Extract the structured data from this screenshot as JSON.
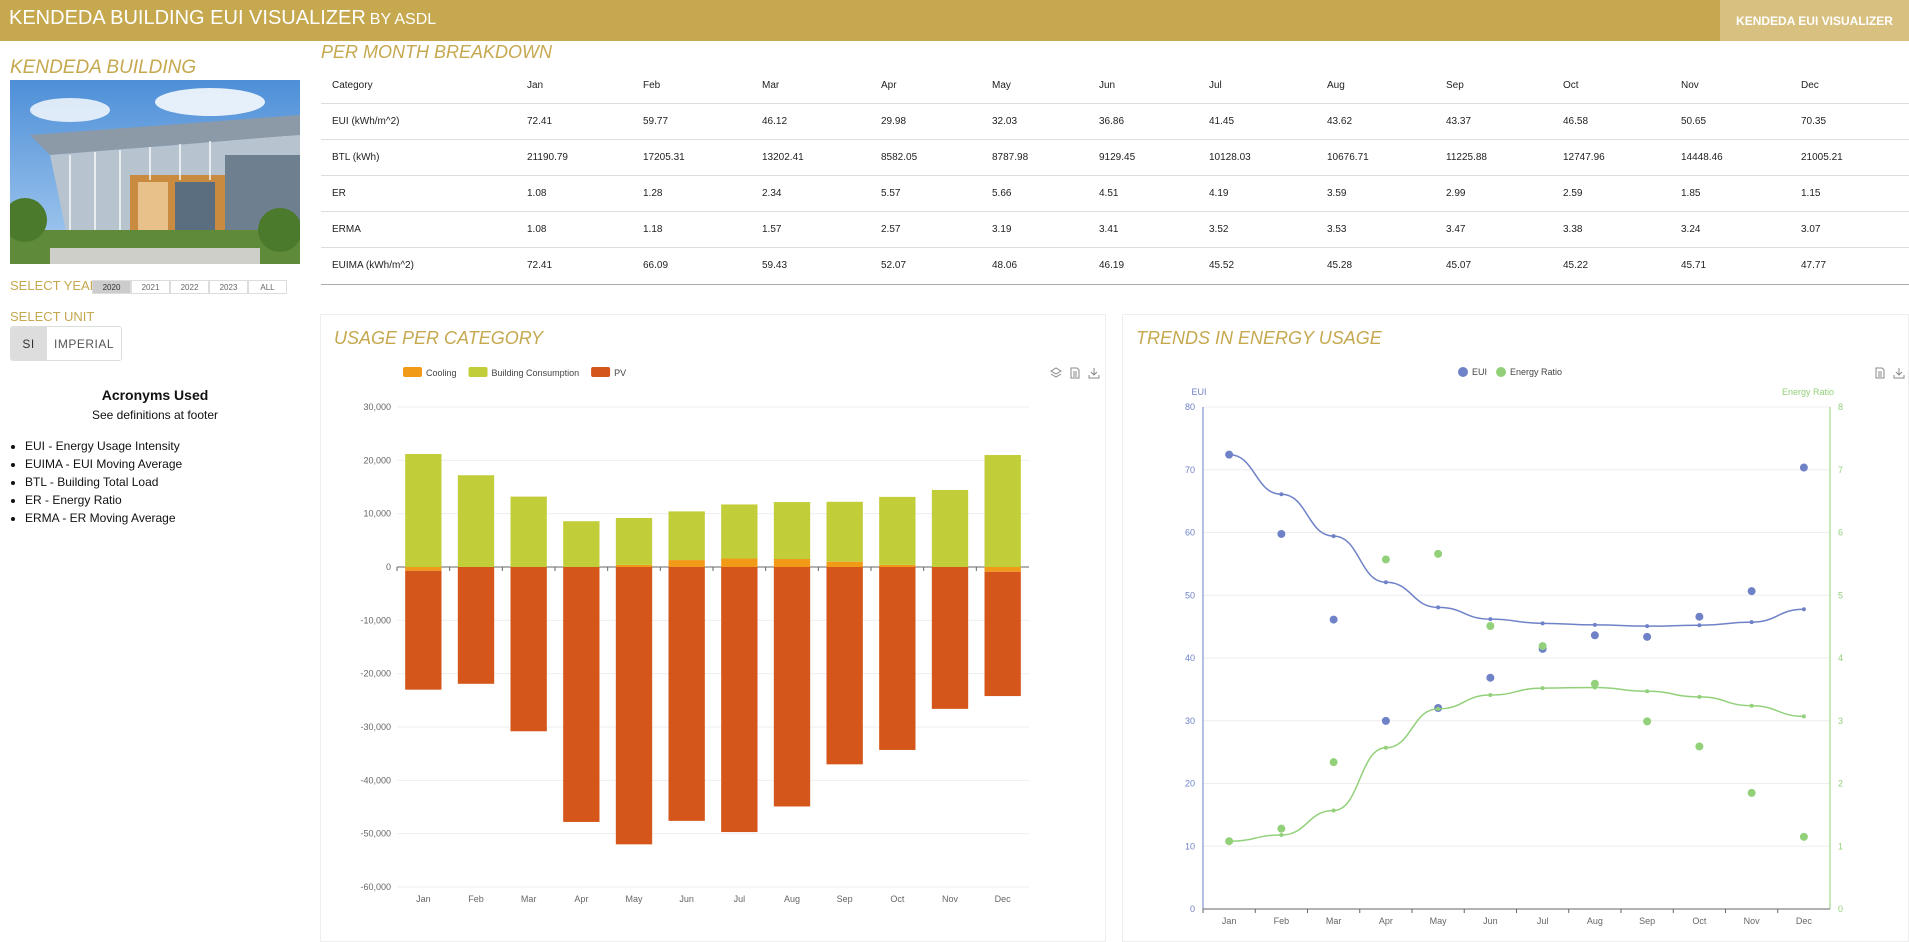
{
  "header": {
    "title": "KENDEDA BUILDING EUI VISUALIZER",
    "by": "BY ASDL",
    "nav_link": "KENDEDA EUI VISUALIZER"
  },
  "sidebar": {
    "building_title": "KENDEDA BUILDING",
    "select_year_label": "SELECT YEAR",
    "years": [
      "2020",
      "2021",
      "2022",
      "2023",
      "ALL"
    ],
    "selected_year": "2020",
    "select_unit_label": "SELECT UNIT",
    "units": [
      "SI",
      "IMPERIAL"
    ],
    "selected_unit": "SI",
    "acronyms_title": "Acronyms Used",
    "acronyms_subtitle": "See definitions at footer",
    "acronyms": [
      "EUI - Energy Usage Intensity",
      "EUIMA - EUI Moving Average",
      "BTL - Building Total Load",
      "ER - Energy Ratio",
      "ERMA - ER Moving Average"
    ]
  },
  "month_table": {
    "title": "PER MONTH BREAKDOWN",
    "headers": [
      "Category",
      "Jan",
      "Feb",
      "Mar",
      "Apr",
      "May",
      "Jun",
      "Jul",
      "Aug",
      "Sep",
      "Oct",
      "Nov",
      "Dec"
    ],
    "rows": [
      [
        "EUI (kWh/m^2)",
        "72.41",
        "59.77",
        "46.12",
        "29.98",
        "32.03",
        "36.86",
        "41.45",
        "43.62",
        "43.37",
        "46.58",
        "50.65",
        "70.35"
      ],
      [
        "BTL (kWh)",
        "21190.79",
        "17205.31",
        "13202.41",
        "8582.05",
        "8787.98",
        "9129.45",
        "10128.03",
        "10676.71",
        "11225.88",
        "12747.96",
        "14448.46",
        "21005.21"
      ],
      [
        "ER",
        "1.08",
        "1.28",
        "2.34",
        "5.57",
        "5.66",
        "4.51",
        "4.19",
        "3.59",
        "2.99",
        "2.59",
        "1.85",
        "1.15"
      ],
      [
        "ERMA",
        "1.08",
        "1.18",
        "1.57",
        "2.57",
        "3.19",
        "3.41",
        "3.52",
        "3.53",
        "3.47",
        "3.38",
        "3.24",
        "3.07"
      ],
      [
        "EUIMA (kWh/m^2)",
        "72.41",
        "66.09",
        "59.43",
        "52.07",
        "48.06",
        "46.19",
        "45.52",
        "45.28",
        "45.07",
        "45.22",
        "45.71",
        "47.77"
      ]
    ]
  },
  "usage_panel": {
    "title": "USAGE PER CATEGORY"
  },
  "trends_panel": {
    "title": "TRENDS IN ENERGY USAGE"
  },
  "icons": {
    "toolbox_left": [
      "stack-icon",
      "data-view-icon",
      "download-icon"
    ],
    "toolbox_right": [
      "data-view-icon",
      "download-icon"
    ]
  },
  "colors": {
    "gold": "#C6A84F",
    "cooling": "#F09A18",
    "building_consumption": "#C2CD3A",
    "pv": "#D4561B",
    "eui": "#6F82C8",
    "energy_ratio": "#92D07A"
  },
  "chart_data": [
    {
      "type": "bar",
      "stacked": true,
      "categories": [
        "Jan",
        "Feb",
        "Mar",
        "Apr",
        "May",
        "Jun",
        "Jul",
        "Aug",
        "Sep",
        "Oct",
        "Nov",
        "Dec"
      ],
      "series": [
        {
          "name": "Cooling",
          "values": [
            -700,
            0,
            0,
            0,
            400,
            1300,
            1600,
            1500,
            1000,
            400,
            0,
            -900
          ]
        },
        {
          "name": "Building Consumption",
          "values": [
            21190,
            17205,
            13202,
            8582,
            8788,
            9129,
            10128,
            10677,
            11226,
            12748,
            14448,
            21005
          ]
        },
        {
          "name": "PV",
          "values": [
            -22300,
            -21900,
            -30800,
            -47800,
            -52000,
            -47600,
            -49700,
            -44900,
            -37000,
            -34300,
            -26600,
            -23300
          ]
        }
      ],
      "yticks": [
        "30,000",
        "20,000",
        "10,000",
        "0",
        "-10,000",
        "-20,000",
        "-30,000",
        "-40,000",
        "-50,000",
        "-60,000"
      ],
      "ylim": [
        -60000,
        30000
      ],
      "legend": "top-left",
      "grid": true
    },
    {
      "type": "scatter",
      "categories": [
        "Jan",
        "Feb",
        "Mar",
        "Apr",
        "May",
        "Jun",
        "Jul",
        "Aug",
        "Sep",
        "Oct",
        "Nov",
        "Dec"
      ],
      "series": [
        {
          "name": "EUI",
          "axis": "left",
          "points": [
            72.41,
            59.77,
            46.12,
            29.98,
            32.03,
            36.86,
            41.45,
            43.62,
            43.37,
            46.58,
            50.65,
            70.35
          ],
          "line": [
            72.41,
            66.09,
            59.43,
            52.07,
            48.06,
            46.19,
            45.52,
            45.28,
            45.07,
            45.22,
            45.71,
            47.77
          ]
        },
        {
          "name": "Energy Ratio",
          "axis": "right",
          "points": [
            1.08,
            1.28,
            2.34,
            5.57,
            5.66,
            4.51,
            4.19,
            3.59,
            2.99,
            2.59,
            1.85,
            1.15
          ],
          "line": [
            1.08,
            1.18,
            1.57,
            2.57,
            3.19,
            3.41,
            3.52,
            3.53,
            3.47,
            3.38,
            3.24,
            3.07
          ]
        }
      ],
      "ylabel_left": "EUI",
      "ylabel_right": "Energy Ratio",
      "ylim_left": [
        0,
        80
      ],
      "ylim_right": [
        0,
        8
      ],
      "yticks_left": [
        "0",
        "10",
        "20",
        "30",
        "40",
        "50",
        "60",
        "70",
        "80"
      ],
      "yticks_right": [
        "0",
        "1",
        "2",
        "3",
        "4",
        "5",
        "6",
        "7",
        "8"
      ],
      "legend": "top-center",
      "grid": true
    }
  ]
}
